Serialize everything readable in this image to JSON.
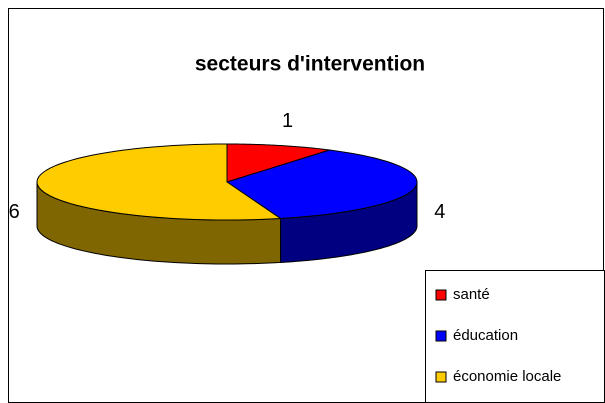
{
  "chart_data": {
    "type": "pie3d",
    "title": "secteurs d'intervention",
    "categories": [
      "santé",
      "éducation",
      "économie locale"
    ],
    "values": [
      1,
      4,
      6
    ],
    "colors": [
      "#ff0000",
      "#0000ff",
      "#ffcc00"
    ],
    "side_colors": [
      "#800000",
      "#000080",
      "#806600"
    ],
    "legend": "right"
  }
}
